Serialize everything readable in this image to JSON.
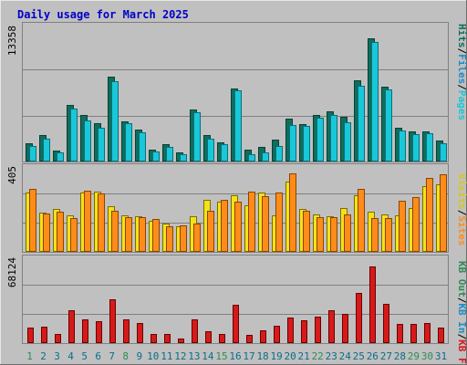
{
  "title": "Daily usage for March 2025",
  "colors": {
    "background": "#c0c0c0",
    "frame": "#e8e8e8",
    "title": "#0000c8",
    "grid": "#808080",
    "weekday_label": "#0a6e8a",
    "weekend_label": "#2e8b57",
    "pages_dark": "#0f6e5c",
    "pages_light": "#19c8d8",
    "files_light": "#2fe0ef",
    "visits": "#f5e11a",
    "sites": "#ff8c1a",
    "kb_in": "#d61a1a"
  },
  "legend": {
    "hits": "Hits",
    "files": "Files",
    "pages": "Pages",
    "visits": "Visits",
    "sites": "Sites",
    "kb_in": "KB In",
    "kb_out": "KB Out",
    "kb_f": "KB F",
    "sep": "/"
  },
  "days": [
    "1",
    "2",
    "3",
    "4",
    "5",
    "6",
    "7",
    "8",
    "9",
    "10",
    "11",
    "12",
    "13",
    "14",
    "15",
    "16",
    "17",
    "18",
    "19",
    "20",
    "21",
    "22",
    "23",
    "24",
    "25",
    "26",
    "27",
    "28",
    "29",
    "30",
    "31"
  ],
  "weekend_days": [
    1,
    8,
    15,
    22,
    29,
    30
  ],
  "chart_data": [
    {
      "type": "bar",
      "name": "hits-files-pages",
      "ymax_label": "13358",
      "ylim": [
        0,
        13358
      ],
      "categories": [
        "1",
        "2",
        "3",
        "4",
        "5",
        "6",
        "7",
        "8",
        "9",
        "10",
        "11",
        "12",
        "13",
        "14",
        "15",
        "16",
        "17",
        "18",
        "19",
        "20",
        "21",
        "22",
        "23",
        "24",
        "25",
        "26",
        "27",
        "28",
        "29",
        "30",
        "31"
      ],
      "series": [
        {
          "name": "Hits",
          "values": [
            1800,
            2600,
            1100,
            5600,
            4600,
            3800,
            8400,
            4000,
            3200,
            1200,
            1700,
            900,
            5100,
            2600,
            1900,
            7200,
            1200,
            1400,
            2200,
            4200,
            3700,
            4600,
            5000,
            4400,
            8000,
            12200,
            7400,
            3300,
            3000,
            3000,
            2100
          ]
        },
        {
          "name": "Files",
          "values": [
            1500,
            2300,
            900,
            5200,
            4100,
            3300,
            7900,
            3800,
            2900,
            1000,
            1400,
            700,
            4900,
            2300,
            1700,
            7000,
            700,
            900,
            1500,
            3600,
            3500,
            4300,
            4600,
            3900,
            7500,
            11800,
            7100,
            3100,
            2700,
            2800,
            1800
          ]
        }
      ]
    },
    {
      "type": "bar",
      "name": "visits-sites",
      "ymax_label": "405",
      "ylim": [
        0,
        405
      ],
      "categories": [
        "1",
        "2",
        "3",
        "4",
        "5",
        "6",
        "7",
        "8",
        "9",
        "10",
        "11",
        "12",
        "13",
        "14",
        "15",
        "16",
        "17",
        "18",
        "19",
        "20",
        "21",
        "22",
        "23",
        "24",
        "25",
        "26",
        "27",
        "28",
        "29",
        "30",
        "31"
      ],
      "series": [
        {
          "name": "Visits",
          "values": [
            285,
            190,
            205,
            175,
            285,
            290,
            220,
            175,
            170,
            150,
            135,
            125,
            170,
            250,
            240,
            272,
            225,
            285,
            175,
            340,
            205,
            182,
            170,
            212,
            275,
            192,
            182,
            175,
            210,
            318,
            325
          ]
        },
        {
          "name": "Sites",
          "values": [
            305,
            185,
            195,
            163,
            295,
            280,
            200,
            168,
            168,
            158,
            125,
            128,
            135,
            198,
            250,
            240,
            290,
            268,
            285,
            378,
            198,
            168,
            168,
            180,
            305,
            165,
            165,
            245,
            262,
            355,
            375
          ]
        }
      ]
    },
    {
      "type": "bar",
      "name": "kb-in",
      "ymax_label": "68124",
      "ylim": [
        0,
        68124
      ],
      "categories": [
        "1",
        "2",
        "3",
        "4",
        "5",
        "6",
        "7",
        "8",
        "9",
        "10",
        "11",
        "12",
        "13",
        "14",
        "15",
        "16",
        "17",
        "18",
        "19",
        "20",
        "21",
        "22",
        "23",
        "24",
        "25",
        "26",
        "27",
        "28",
        "29",
        "30",
        "31"
      ],
      "series": [
        {
          "name": "KB In",
          "values": [
            12500,
            13500,
            7500,
            27000,
            19500,
            17500,
            35500,
            19500,
            16500,
            7500,
            7500,
            3500,
            19500,
            9500,
            7500,
            31000,
            7000,
            10000,
            14000,
            20500,
            18500,
            21500,
            27000,
            23500,
            40500,
            62500,
            32000,
            15500,
            15500,
            16500,
            12500
          ]
        }
      ]
    }
  ]
}
